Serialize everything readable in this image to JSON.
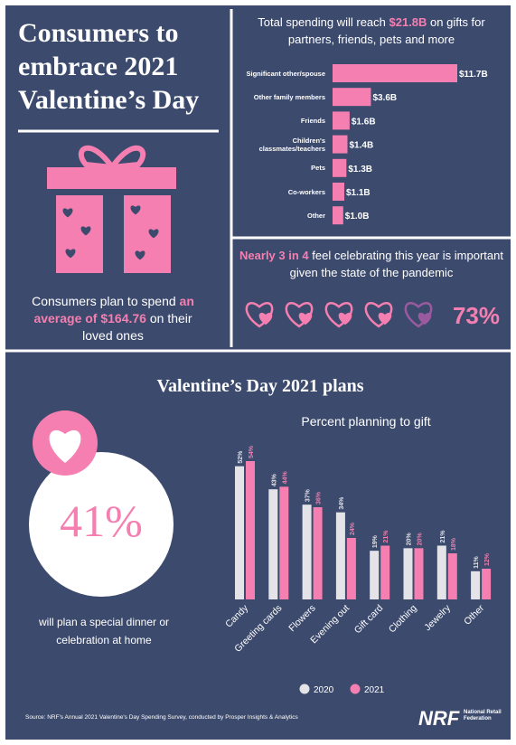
{
  "header": {
    "title": "Consumers to embrace 2021 Valentine’s Day"
  },
  "average": {
    "before": "Consumers plan to spend ",
    "highlight": "an average of $164.76",
    "after": " on their loved ones"
  },
  "pandemic": {
    "highlight": "Nearly 3 in 4",
    "text": " feel celebrating this year is important given the state of the pandemic",
    "stat": "73%"
  },
  "plans": {
    "title": "Valentine’s Day 2021 plans",
    "stat": "41%",
    "text": "will plan a special dinner or celebration at home"
  },
  "chart_data": [
    {
      "type": "hbar",
      "title_parts": [
        "Total spending will reach ",
        "$21.8B",
        " on gifts for partners, friends, pets and more"
      ],
      "categories": [
        "Significant other/spouse",
        "Other family members",
        "Friends",
        "Children's classmates/teachers",
        "Pets",
        "Co-workers",
        "Other"
      ],
      "values": [
        11.7,
        3.6,
        1.6,
        1.4,
        1.3,
        1.1,
        1.0
      ],
      "value_labels": [
        "$11.7B",
        "$3.6B",
        "$1.6B",
        "$1.4B",
        "$1.3B",
        "$1.1B",
        "$1.0B"
      ],
      "color": "#f47fb0"
    },
    {
      "type": "bar",
      "title": "Percent planning to gift",
      "categories": [
        "Candy",
        "Greeting cards",
        "Flowers",
        "Evening out",
        "Gift card",
        "Clothing",
        "Jewelry",
        "Other"
      ],
      "series": [
        {
          "name": "2020",
          "color": "#e4e4e8",
          "values": [
            52,
            43,
            37,
            34,
            19,
            20,
            21,
            11
          ],
          "value_labels": [
            "52%",
            "43%",
            "37%",
            "34%",
            "19%",
            "20%",
            "21%",
            "11%"
          ]
        },
        {
          "name": "2021",
          "color": "#f47fb0",
          "values": [
            54,
            44,
            36,
            24,
            21,
            20,
            18,
            12
          ],
          "value_labels": [
            "54%",
            "44%",
            "36%",
            "24%",
            "21%",
            "20%",
            "18%",
            "12%"
          ]
        }
      ]
    }
  ],
  "footer": {
    "source": "Source: NRF's Annual 2021 Valentine's Day Spending Survey, conducted by Prosper Insights & Analytics",
    "logo": "NRF",
    "logo_text": "National Retail Federation"
  }
}
